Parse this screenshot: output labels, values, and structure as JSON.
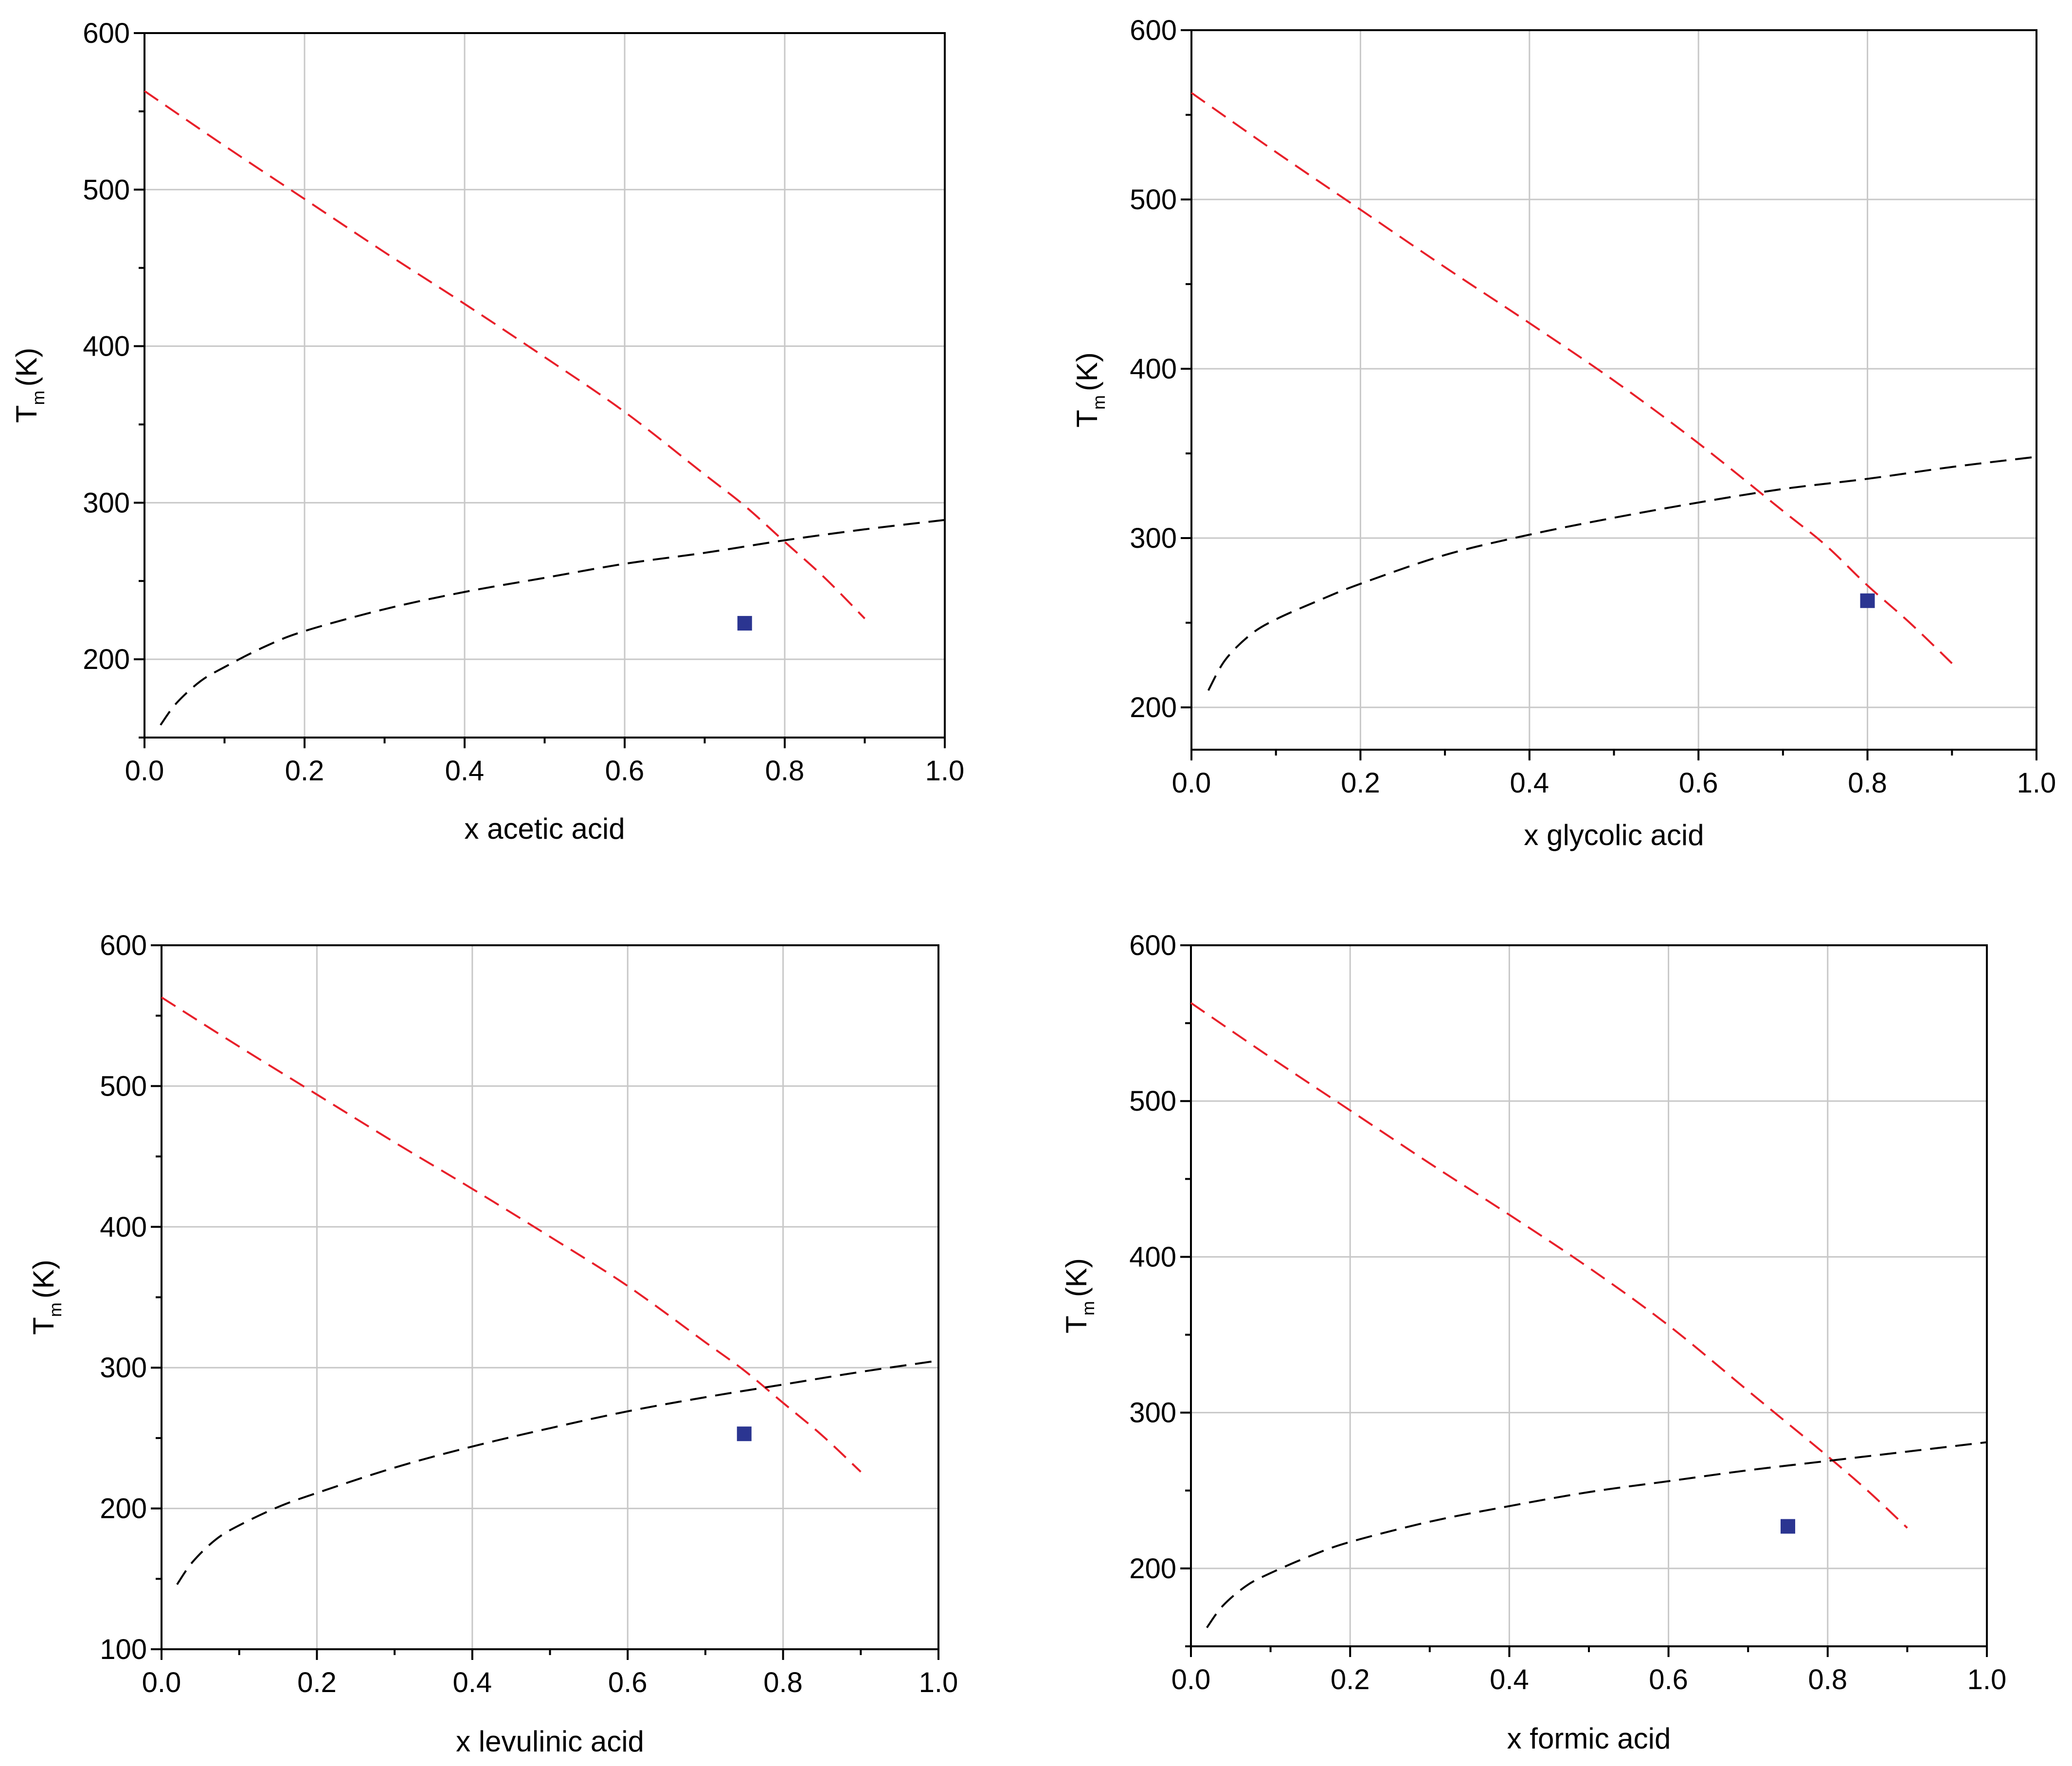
{
  "chart_data": [
    {
      "type": "line",
      "panel": "top-left",
      "xlabel": "x acetic acid",
      "ylabel": "T",
      "ylabel_sub": "m",
      "ylabel_unit": "(K)",
      "xlim": [
        0,
        1
      ],
      "ylim": [
        150,
        600
      ],
      "xticks": [
        0.0,
        0.2,
        0.4,
        0.6,
        0.8,
        1.0
      ],
      "xtick_labels": [
        "0.0",
        "0.2",
        "0.4",
        "0.6",
        "0.8",
        "1.0"
      ],
      "yticks": [
        200,
        300,
        400,
        500,
        600
      ],
      "ytick_labels": [
        "200",
        "300",
        "400",
        "500",
        "600"
      ],
      "grid": true,
      "series": [
        {
          "name": "red dashed",
          "color": "#e8202a",
          "style": "dashed",
          "x": [
            0,
            0.1,
            0.2,
            0.3,
            0.4,
            0.5,
            0.6,
            0.7,
            0.75,
            0.8,
            0.85,
            0.9
          ],
          "y": [
            563,
            528,
            494,
            460,
            427,
            393,
            358,
            318,
            298,
            275,
            252,
            226
          ]
        },
        {
          "name": "black dashed",
          "color": "#000000",
          "style": "dashed",
          "x": [
            0.02,
            0.04,
            0.07,
            0.1,
            0.15,
            0.2,
            0.3,
            0.4,
            0.5,
            0.6,
            0.7,
            0.8,
            0.9,
            1.0
          ],
          "y": [
            158,
            172,
            186,
            195,
            208,
            218,
            232,
            243,
            252,
            261,
            268,
            276,
            283,
            289
          ]
        },
        {
          "name": "experimental point",
          "color": "#2b3591",
          "style": "square-marker",
          "x": [
            0.75
          ],
          "y": [
            223
          ]
        }
      ]
    },
    {
      "type": "line",
      "panel": "top-right",
      "xlabel": "x glycolic acid",
      "ylabel": "T",
      "ylabel_sub": "m",
      "ylabel_unit": "(K)",
      "xlim": [
        0,
        1
      ],
      "ylim": [
        175,
        600
      ],
      "xticks": [
        0.0,
        0.2,
        0.4,
        0.6,
        0.8,
        1.0
      ],
      "xtick_labels": [
        "0.0",
        "0.2",
        "0.4",
        "0.6",
        "0.8",
        "1.0"
      ],
      "yticks": [
        200,
        300,
        400,
        500,
        600
      ],
      "ytick_labels": [
        "200",
        "300",
        "400",
        "500",
        "600"
      ],
      "grid": true,
      "series": [
        {
          "name": "red dashed",
          "color": "#e8202a",
          "style": "dashed",
          "x": [
            0,
            0.1,
            0.2,
            0.3,
            0.4,
            0.5,
            0.6,
            0.7,
            0.75,
            0.8,
            0.85,
            0.9
          ],
          "y": [
            563,
            528,
            494,
            460,
            427,
            393,
            356,
            316,
            296,
            272,
            250,
            226
          ]
        },
        {
          "name": "black dashed",
          "color": "#000000",
          "style": "dashed",
          "x": [
            0.02,
            0.04,
            0.07,
            0.1,
            0.15,
            0.2,
            0.3,
            0.4,
            0.5,
            0.6,
            0.7,
            0.8,
            0.9,
            1.0
          ],
          "y": [
            210,
            228,
            243,
            252,
            263,
            273,
            290,
            302,
            312,
            321,
            329,
            335,
            342,
            348
          ]
        },
        {
          "name": "experimental point",
          "color": "#2b3591",
          "style": "square-marker",
          "x": [
            0.8
          ],
          "y": [
            263
          ]
        }
      ]
    },
    {
      "type": "line",
      "panel": "bottom-left",
      "xlabel": "x levulinic acid",
      "ylabel": "T",
      "ylabel_sub": "m",
      "ylabel_unit": "(K)",
      "xlim": [
        0,
        1
      ],
      "ylim": [
        100,
        600
      ],
      "xticks": [
        0.0,
        0.2,
        0.4,
        0.6,
        0.8,
        1.0
      ],
      "xtick_labels": [
        "0.0",
        "0.2",
        "0.4",
        "0.6",
        "0.8",
        "1.0"
      ],
      "yticks": [
        100,
        200,
        300,
        400,
        500,
        600
      ],
      "ytick_labels": [
        "100",
        "200",
        "300",
        "400",
        "500",
        "600"
      ],
      "grid": true,
      "series": [
        {
          "name": "red dashed",
          "color": "#e8202a",
          "style": "dashed",
          "x": [
            0,
            0.1,
            0.2,
            0.3,
            0.4,
            0.5,
            0.6,
            0.7,
            0.75,
            0.8,
            0.85,
            0.9
          ],
          "y": [
            563,
            528,
            494,
            460,
            427,
            393,
            358,
            318,
            298,
            275,
            252,
            226
          ]
        },
        {
          "name": "black dashed",
          "color": "#000000",
          "style": "dashed",
          "x": [
            0.02,
            0.04,
            0.07,
            0.1,
            0.15,
            0.2,
            0.3,
            0.4,
            0.5,
            0.6,
            0.7,
            0.8,
            0.9,
            1.0
          ],
          "y": [
            146,
            162,
            178,
            188,
            201,
            211,
            229,
            244,
            257,
            269,
            279,
            288,
            297,
            305
          ]
        },
        {
          "name": "experimental point",
          "color": "#2b3591",
          "style": "square-marker",
          "x": [
            0.75
          ],
          "y": [
            253
          ]
        }
      ]
    },
    {
      "type": "line",
      "panel": "bottom-right",
      "xlabel": "x formic acid",
      "ylabel": "T",
      "ylabel_sub": "m",
      "ylabel_unit": "(K)",
      "xlim": [
        0,
        1
      ],
      "ylim": [
        150,
        600
      ],
      "xticks": [
        0.0,
        0.2,
        0.4,
        0.6,
        0.8,
        1.0
      ],
      "xtick_labels": [
        "0.0",
        "0.2",
        "0.4",
        "0.6",
        "0.8",
        "1.0"
      ],
      "yticks": [
        200,
        300,
        400,
        500,
        600
      ],
      "ytick_labels": [
        "200",
        "300",
        "400",
        "500",
        "600"
      ],
      "grid": true,
      "series": [
        {
          "name": "red dashed",
          "color": "#e8202a",
          "style": "dashed",
          "x": [
            0,
            0.1,
            0.2,
            0.3,
            0.4,
            0.5,
            0.6,
            0.7,
            0.75,
            0.8,
            0.85,
            0.9
          ],
          "y": [
            563,
            528,
            494,
            460,
            427,
            393,
            356,
            314,
            293,
            272,
            250,
            226
          ]
        },
        {
          "name": "black dashed",
          "color": "#000000",
          "style": "dashed",
          "x": [
            0.02,
            0.04,
            0.07,
            0.1,
            0.15,
            0.2,
            0.3,
            0.4,
            0.5,
            0.6,
            0.7,
            0.8,
            0.9,
            1.0
          ],
          "y": [
            162,
            176,
            189,
            197,
            208,
            217,
            230,
            240,
            249,
            256,
            263,
            269,
            275,
            281
          ]
        },
        {
          "name": "experimental point",
          "color": "#2b3591",
          "style": "square-marker",
          "x": [
            0.75
          ],
          "y": [
            227
          ]
        }
      ]
    }
  ]
}
